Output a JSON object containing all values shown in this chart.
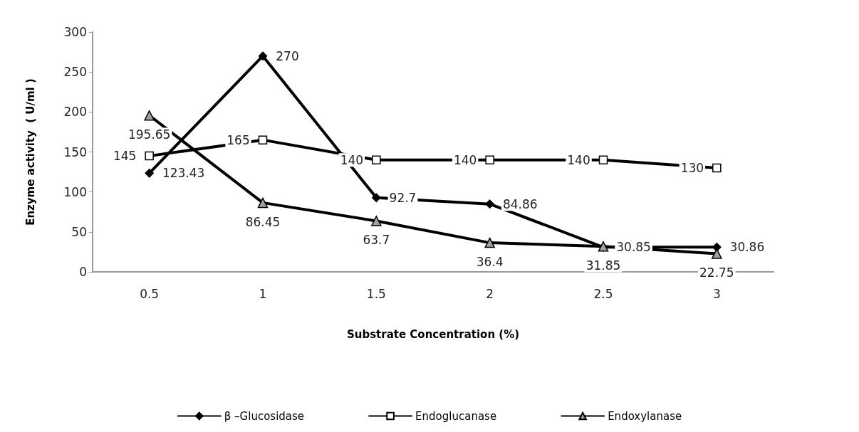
{
  "chart_data": {
    "type": "line",
    "xlabel": "Substrate Concentration (%)",
    "ylabel": "Enzyme activity  ( U/ml )",
    "categories": [
      "0.5",
      "1",
      "1.5",
      "2",
      "2.5",
      "3"
    ],
    "ylim": [
      0,
      300
    ],
    "yticks": [
      0,
      50,
      100,
      150,
      200,
      250,
      300
    ],
    "grid": false,
    "legend": "bottom",
    "data_labels": true,
    "line_style": "solid",
    "series": [
      {
        "name": "β –Glucosidase",
        "color": "#000000",
        "marker": "diamond",
        "values": [
          123.43,
          270,
          92.7,
          84.86,
          30.85,
          30.86
        ]
      },
      {
        "name": "Endoglucanase",
        "color": "#000000",
        "marker": "square",
        "values": [
          145,
          165,
          140,
          140,
          140,
          130
        ]
      },
      {
        "name": "Endoxylanase",
        "color": "#000000",
        "marker": "triangle",
        "values": [
          195.65,
          86.45,
          63.7,
          36.4,
          31.85,
          22.75
        ]
      }
    ]
  }
}
